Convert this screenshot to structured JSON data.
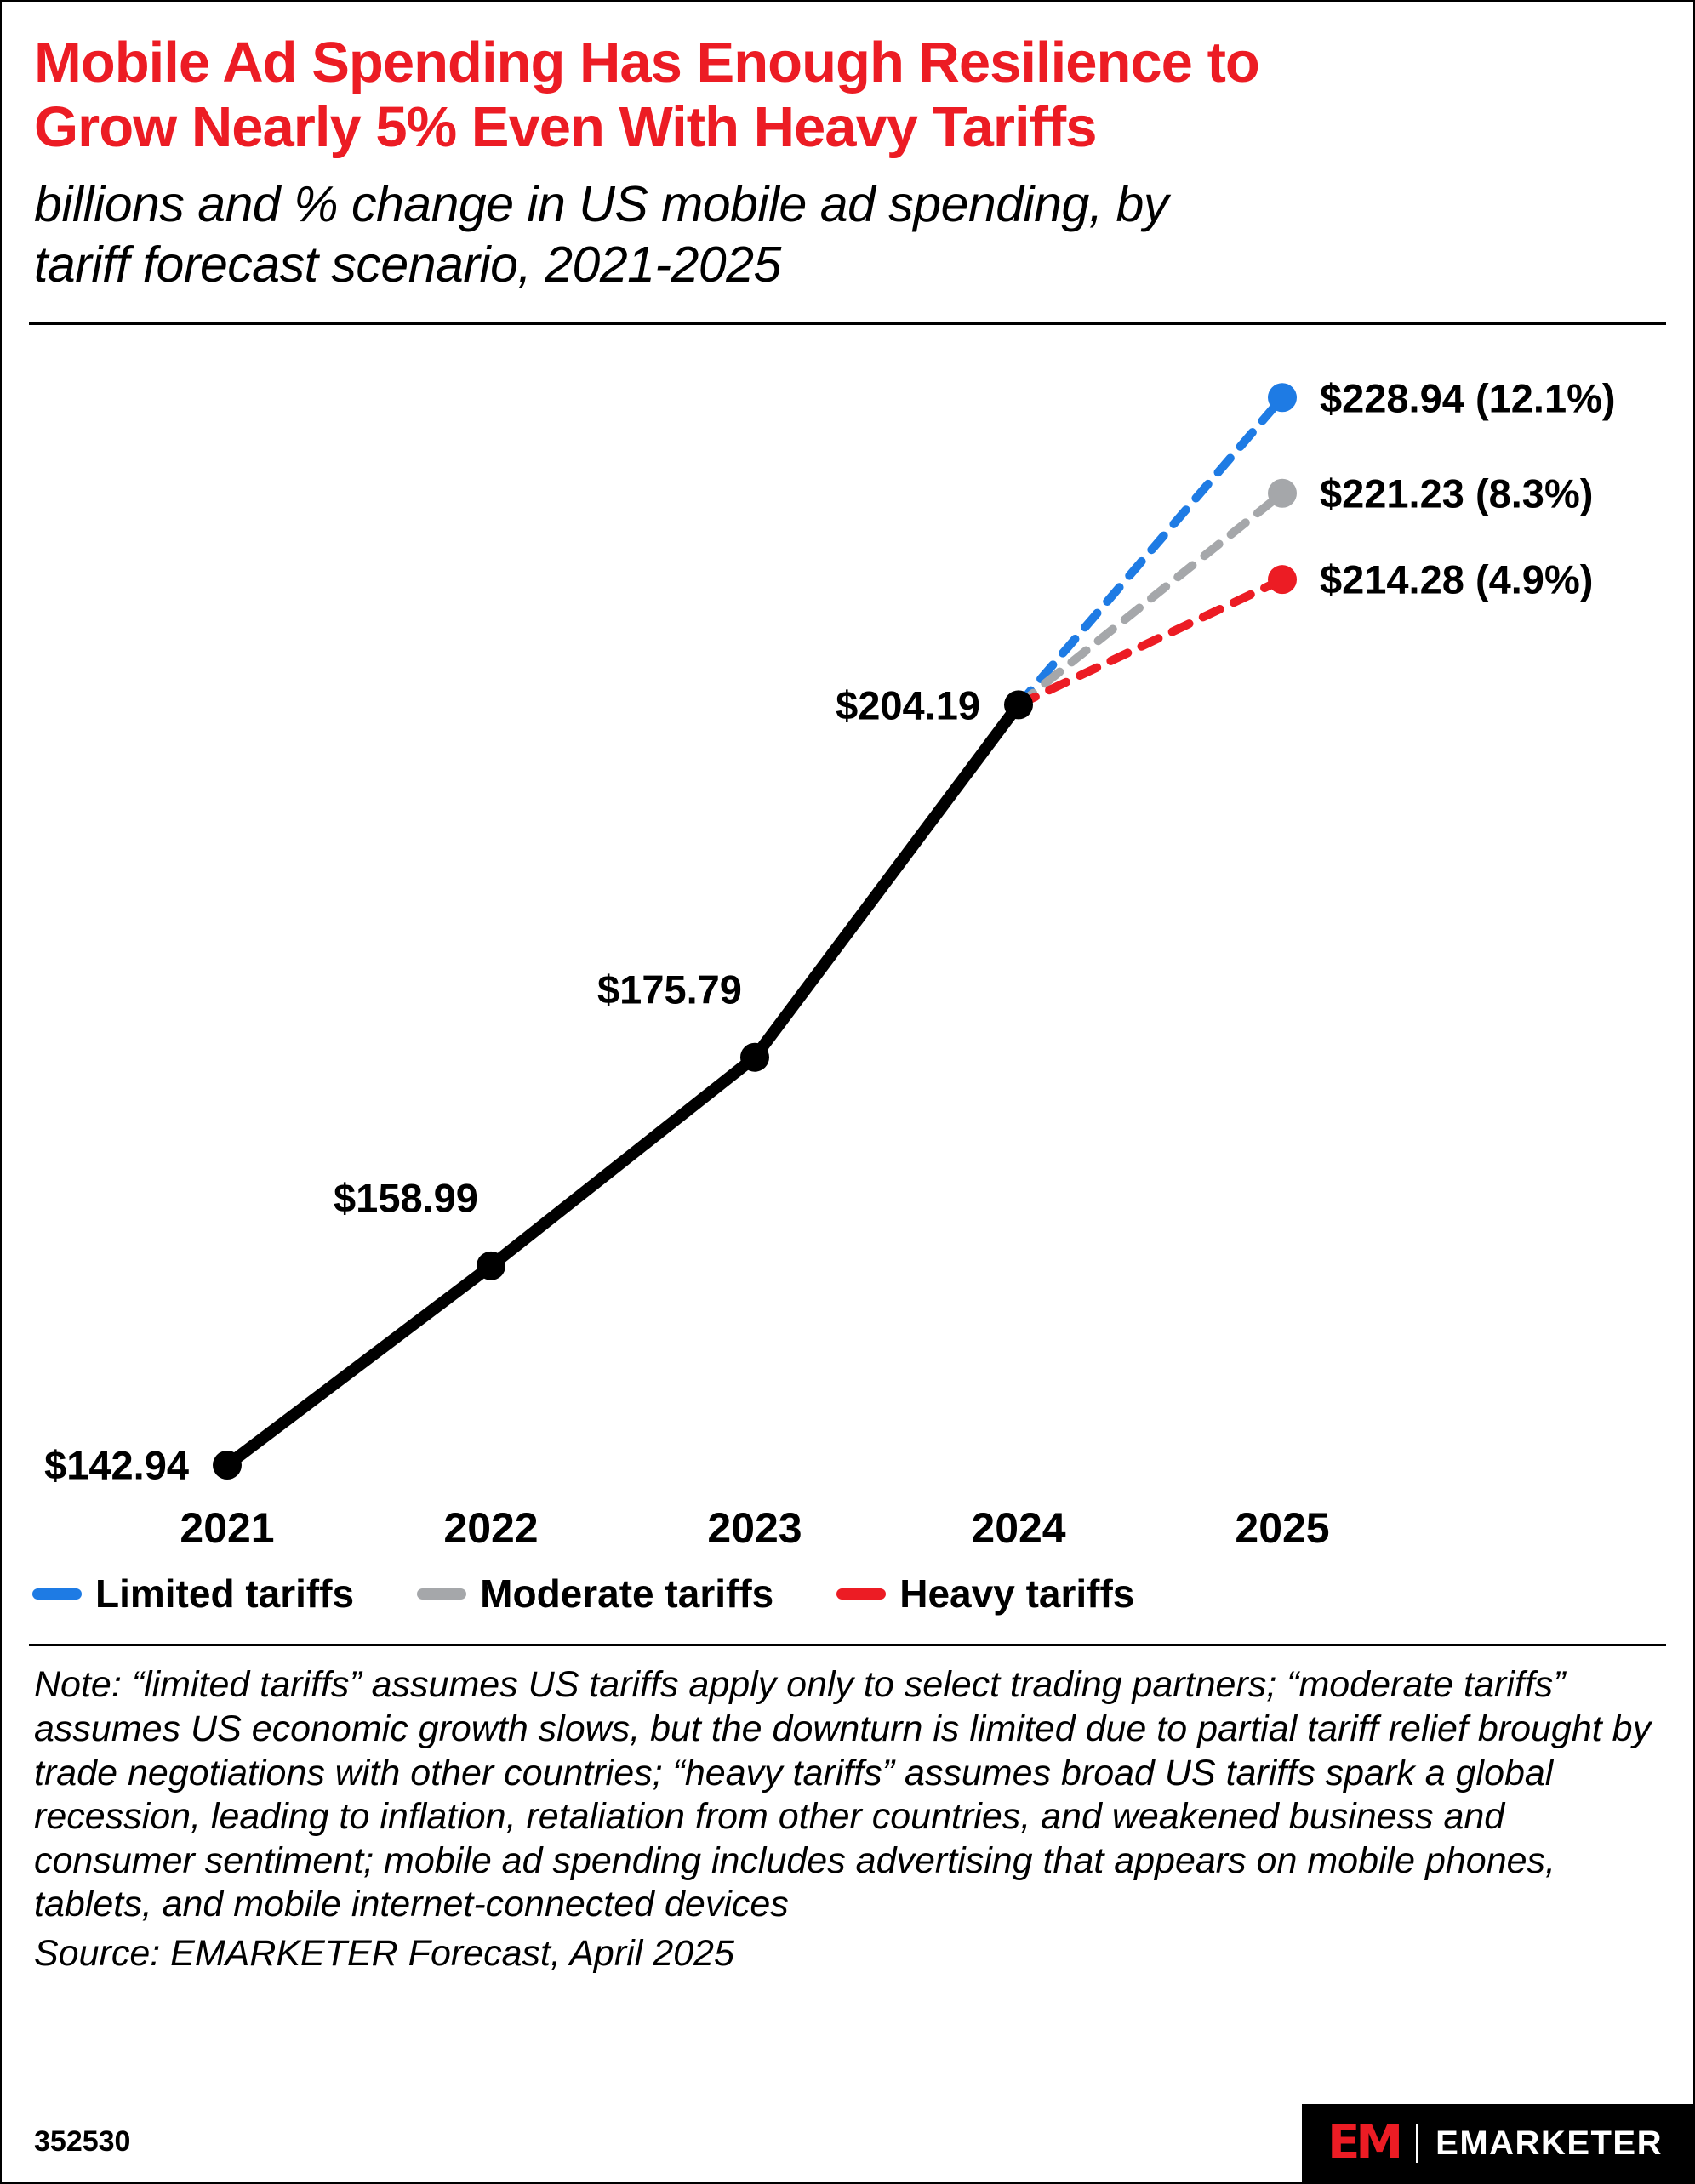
{
  "header": {
    "title": "Mobile Ad Spending Has Enough Resilience to\nGrow Nearly 5% Even With Heavy Tariffs",
    "subtitle": "billions and % change in US mobile ad spending, by\ntariff forecast scenario, 2021-2025"
  },
  "colors": {
    "accent_red": "#EC1C24",
    "blue": "#1E7BE4",
    "gray": "#A5A7AA",
    "black": "#000000"
  },
  "chart_data": {
    "type": "line",
    "title": "Mobile Ad Spending Has Enough Resilience to Grow Nearly 5% Even With Heavy Tariffs",
    "subtitle": "billions and % change in US mobile ad spending, by tariff forecast scenario, 2021-2025",
    "unit": "billions of US dollars",
    "x_tick_labels": [
      "2021",
      "2022",
      "2023",
      "2024",
      "2025"
    ],
    "historical": {
      "name": "US mobile ad spending",
      "years": [
        2021,
        2022,
        2023,
        2024
      ],
      "values": [
        142.94,
        158.99,
        175.79,
        204.19
      ],
      "labels": [
        "$142.94",
        "$158.99",
        "$175.79",
        "$204.19"
      ],
      "color": "#000000",
      "style": "solid"
    },
    "scenarios": [
      {
        "name": "Limited tariffs",
        "year": 2025,
        "value": 228.94,
        "pct_change": 12.1,
        "label": "$228.94 (12.1%)",
        "color": "#1E7BE4",
        "style": "dashed"
      },
      {
        "name": "Moderate tariffs",
        "year": 2025,
        "value": 221.23,
        "pct_change": 8.3,
        "label": "$221.23 (8.3%)",
        "color": "#A5A7AA",
        "style": "dashed"
      },
      {
        "name": "Heavy tariffs",
        "year": 2025,
        "value": 214.28,
        "pct_change": 4.9,
        "label": "$214.28 (4.9%)",
        "color": "#EC1C24",
        "style": "dashed"
      }
    ],
    "ylim": [
      142.94,
      228.94
    ],
    "grid": false,
    "legend_position": "bottom"
  },
  "legend": {
    "items": [
      {
        "label": "Limited tariffs",
        "color": "#1E7BE4"
      },
      {
        "label": "Moderate tariffs",
        "color": "#A5A7AA"
      },
      {
        "label": "Heavy tariffs",
        "color": "#EC1C24"
      }
    ]
  },
  "note": {
    "text": "Note: “limited tariffs” assumes US tariffs apply only to select trading partners; “moderate tariffs” assumes US economic growth slows, but the downturn is limited due to partial tariff relief brought by trade negotiations with other countries; “heavy tariffs” assumes broad US tariffs spark a global recession, leading to inflation, retaliation from other countries, and weakened business and consumer sentiment; mobile ad spending includes advertising that appears on mobile phones, tablets, and mobile internet-connected devices",
    "source": "Source: EMARKETER Forecast, April 2025"
  },
  "footer": {
    "chart_id": "352530",
    "logo_mark": "EM",
    "brand": "EMARKETER"
  }
}
